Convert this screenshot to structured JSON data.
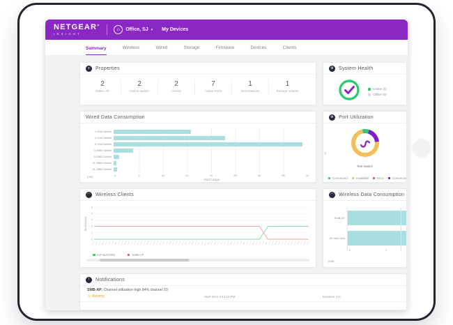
{
  "header": {
    "brand": "NETGEAR",
    "brand_reg": "®",
    "brand_sub": "INSIGHT",
    "location": "Office, SJ",
    "caret": "▾",
    "my_devices": "My Devices"
  },
  "tabs": [
    {
      "label": "Summary",
      "active": true
    },
    {
      "label": "Wireless",
      "active": false
    },
    {
      "label": "Wired",
      "active": false
    },
    {
      "label": "Storage",
      "active": false
    },
    {
      "label": "Firmware",
      "active": false
    },
    {
      "label": "Devices",
      "active": false
    },
    {
      "label": "Clients",
      "active": false
    }
  ],
  "icons": {
    "properties": "≡",
    "system_health": "⚙",
    "port_utilization": "⚙",
    "wireless_clients": "◠",
    "wireless_data": "◠",
    "notifications": "!",
    "warning": "⚠",
    "building": "⌂",
    "chevron_left": "‹"
  },
  "colors": {
    "brand_purple": "#8a28c4",
    "teal_bar": "#a9dfe1",
    "health_green": "#2ecc71",
    "offline_gray": "#d9dde0",
    "donut_amber": "#f2bf5a",
    "donut_purple": "#7a1fd0",
    "error_red": "#ef4a5a",
    "warning_orange": "#f59f1d",
    "line_red": "#f2a0a4",
    "line_green": "#7fd8a8",
    "panel_icon_bg": "#262b3b"
  },
  "panels": {
    "properties": {
      "title": "Properties",
      "stats": [
        {
          "value": "2",
          "label": "Online AP"
        },
        {
          "value": "2",
          "label": "Online Switch"
        },
        {
          "value": "2",
          "label": "Clients"
        },
        {
          "value": "7",
          "label": "Active Ports"
        },
        {
          "value": "1",
          "label": "NAS Devices"
        },
        {
          "value": "1",
          "label": "Storage Volume"
        }
      ]
    },
    "system_health": {
      "title": "System Health",
      "legend": [
        {
          "label": "Online (5)",
          "color": "#2ecc71"
        },
        {
          "label": "Offline (0)",
          "color": "#d9dde0"
        }
      ]
    },
    "wired": {
      "title": "Wired Data Consumption"
    },
    "port": {
      "title": "Port Utilization",
      "device_label": "Test-Switch",
      "legend": [
        {
          "label": "Connected",
          "color": "#2ecc71"
        },
        {
          "label": "Available",
          "color": "#f2bf5a"
        },
        {
          "label": "Error",
          "color": "#ef4a5a"
        },
        {
          "label": "Connected a",
          "color": "#7a1fd0"
        }
      ]
    },
    "wireless_clients": {
      "title": "Wireless Clients",
      "legend": [
        {
          "label": "AP-WAC505",
          "color": "#2ecc71"
        },
        {
          "label": "SMB-AP",
          "color": "#f5485d"
        }
      ]
    },
    "wireless_data": {
      "title": "Wireless Data Consumption"
    },
    "notifications": {
      "title": "Notifications",
      "rows": [
        {
          "device": "SMB-AP:",
          "message": "Channel utilization high 84% channel 10",
          "severity": "Warning",
          "start": "Start 6/14 4:44:10 PM",
          "duration": "Duration 11s"
        }
      ]
    }
  },
  "chart_data": [
    {
      "id": "wired_data_consumption",
      "type": "bar",
      "orientation": "horizontal",
      "title": "Wired Data Consumption",
      "categories": [
        "1-Test-Switch",
        "2-Test-Switch",
        "3-Test-Switch",
        "3-SMB-Switch",
        "5-SMB-Switch",
        "11-SMB-Switch",
        "21-SMB-Switch"
      ],
      "values": [
        16,
        23,
        39,
        4,
        1.2,
        0.6,
        0.7
      ],
      "xlabel": "Data Usage",
      "unit": "(GB)",
      "xticks": [
        0,
        5,
        10,
        15,
        20,
        25,
        30,
        35,
        40
      ],
      "xlim": [
        0,
        40
      ],
      "grid": true,
      "bar_color": "#a9dfe1"
    },
    {
      "id": "port_utilization",
      "type": "donut",
      "title": "Port Utilization",
      "center_label": "Test-Switch",
      "segments": [
        {
          "label": "Connected",
          "pct": 8,
          "color": "#2ecc71"
        },
        {
          "label": "Connected a",
          "pct": 19,
          "color": "#7a1fd0"
        },
        {
          "label": "Available",
          "pct": 73,
          "color": "#f2bf5a"
        }
      ],
      "legend_position": "bottom"
    },
    {
      "id": "wireless_clients",
      "type": "line",
      "title": "Wireless Clients",
      "ylabel": "No Of Clients",
      "yticks": [
        0,
        1,
        2,
        3,
        4,
        5
      ],
      "ylim": [
        0,
        5
      ],
      "x_axis": "time (dense rotated tick labels, illegible at this scale)",
      "series": [
        {
          "name": "AP-WAC505",
          "color": "#7fd8a8",
          "points_pct": [
            [
              0,
              0
            ],
            [
              77,
              0
            ],
            [
              81,
              2
            ],
            [
              100,
              2
            ]
          ]
        },
        {
          "name": "SMB-AP",
          "color": "#f2a0a4",
          "points_pct": [
            [
              0,
              2
            ],
            [
              77,
              2
            ],
            [
              81,
              0
            ],
            [
              100,
              0
            ]
          ]
        }
      ],
      "legend_position": "bottom"
    },
    {
      "id": "wireless_data_consumption",
      "type": "bar",
      "orientation": "horizontal",
      "title": "Wireless Data Consumption",
      "categories": [
        "SMB-AP",
        "AP-WAC505"
      ],
      "values": [
        1.6,
        1.6
      ],
      "values_note": "both bars extend beyond the visible axis (clipped at panel edge)",
      "xticks": [
        0,
        1
      ],
      "xlim": [
        0,
        1.55
      ],
      "unit": "(MB)",
      "bar_color": "#a9dfe1"
    },
    {
      "id": "system_health",
      "type": "donut",
      "title": "System Health",
      "segments": [
        {
          "label": "Online",
          "value": 5,
          "pct": 100,
          "color": "#2ecc71"
        },
        {
          "label": "Offline",
          "value": 0,
          "pct": 0,
          "color": "#d9dde0"
        }
      ]
    }
  ]
}
